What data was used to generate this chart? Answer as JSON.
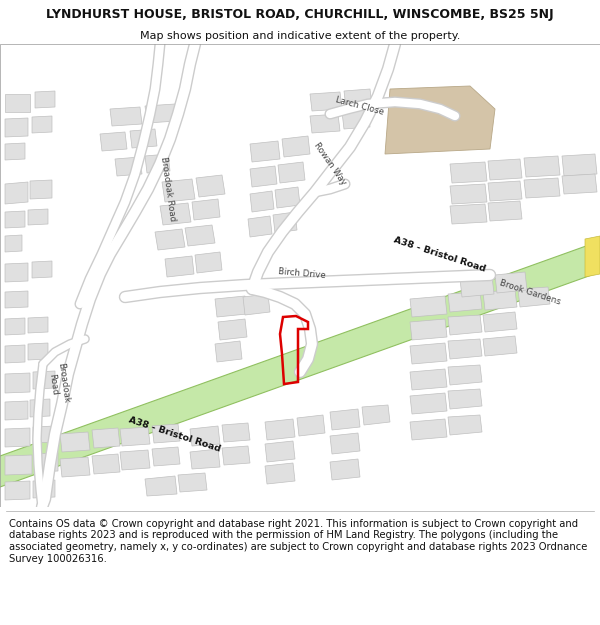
{
  "title_line1": "LYNDHURST HOUSE, BRISTOL ROAD, CHURCHILL, WINSCOMBE, BS25 5NJ",
  "title_line2": "Map shows position and indicative extent of the property.",
  "footer": "Contains OS data © Crown copyright and database right 2021. This information is subject to Crown copyright and database rights 2023 and is reproduced with the permission of HM Land Registry. The polygons (including the associated geometry, namely x, y co-ordinates) are subject to Crown copyright and database rights 2023 Ordnance Survey 100026316.",
  "map_bg": "#f2f2f2",
  "a38_fill": "#c5e8a8",
  "a38_stroke": "#90c060",
  "building_fill": "#e0e0e0",
  "building_stroke": "#c0c0c0",
  "road_fill": "#ffffff",
  "road_stroke": "#cccccc",
  "tan_fill": "#d4c4a8",
  "tan_stroke": "#b8a888",
  "yellow_fill": "#f0e060",
  "yellow_stroke": "#c8bc40",
  "plot_stroke": "#dd0000",
  "title_fontsize": 9.0,
  "subtitle_fontsize": 8.0,
  "footer_fontsize": 7.2,
  "road_label_fontsize": 6.8,
  "label_fontsize": 6.2
}
